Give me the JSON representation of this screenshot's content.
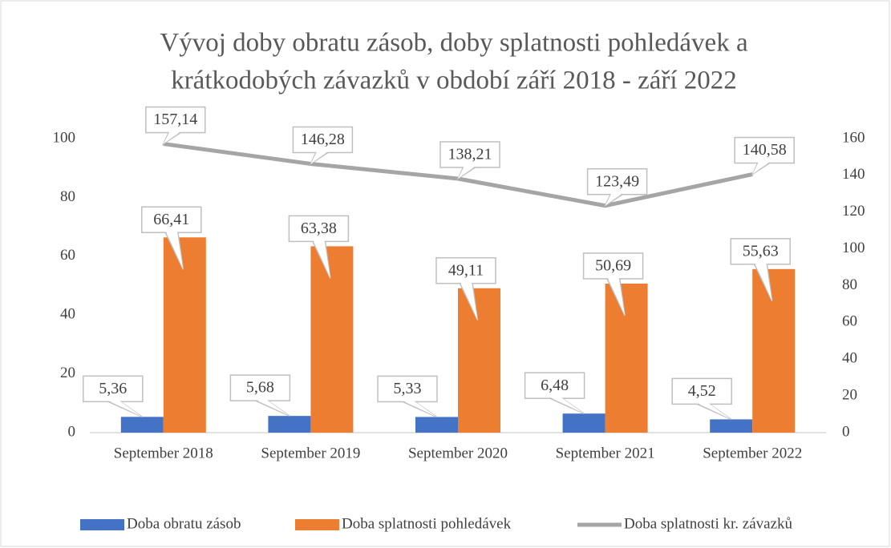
{
  "chart_data": {
    "type": "bar",
    "title": [
      "Vývoj doby obratu zásob, doby splatnosti pohledávek a",
      "krátkodobých závazků v období září 2018 - září 2022"
    ],
    "categories": [
      "September 2018",
      "September 2019",
      "September 2020",
      "September 2021",
      "September 2022"
    ],
    "series": [
      {
        "name": "Doba obratu zásob",
        "type": "bar",
        "color": "#4472c4",
        "values": [
          5.36,
          5.68,
          5.33,
          6.48,
          4.52
        ],
        "value_labels": [
          "5,36",
          "5,68",
          "5,33",
          "6,48",
          "4,52"
        ]
      },
      {
        "name": "Doba splatnosti pohledávek",
        "type": "bar",
        "color": "#ed7d31",
        "values": [
          66.41,
          63.38,
          49.11,
          50.69,
          55.63
        ],
        "value_labels": [
          "66,41",
          "63,38",
          "49,11",
          "50,69",
          "55,63"
        ]
      },
      {
        "name": "Doba splatnosti kr. závazků",
        "type": "line",
        "axis": "y2",
        "color": "#a5a5a5",
        "values": [
          157.14,
          146.28,
          138.21,
          123.49,
          140.58
        ],
        "value_labels": [
          "157,14",
          "146,28",
          "138,21",
          "123,49",
          "140,58"
        ]
      }
    ],
    "ylim": [
      0,
      100
    ],
    "yticks": [
      0,
      20,
      40,
      60,
      80,
      100
    ],
    "y2lim": [
      0,
      160
    ],
    "y2ticks": [
      0,
      20,
      40,
      60,
      80,
      100,
      120,
      140,
      160
    ],
    "grid": false,
    "legend": "bottom"
  }
}
